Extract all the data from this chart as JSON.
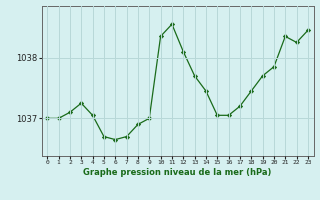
{
  "hours": [
    0,
    1,
    2,
    3,
    4,
    5,
    6,
    7,
    8,
    9,
    10,
    11,
    12,
    13,
    14,
    15,
    16,
    17,
    18,
    19,
    20,
    21,
    22,
    23
  ],
  "pressure": [
    1037.0,
    1037.0,
    1037.1,
    1037.25,
    1037.05,
    1036.7,
    1036.65,
    1036.7,
    1036.9,
    1037.0,
    1038.35,
    1038.55,
    1038.1,
    1037.7,
    1037.45,
    1037.05,
    1037.05,
    1037.2,
    1037.45,
    1037.7,
    1037.85,
    1038.35,
    1038.25,
    1038.45
  ],
  "line_color": "#1a6b1a",
  "marker": "D",
  "marker_size": 2.2,
  "bg_color": "#d6f0f0",
  "grid_color": "#b8d8d8",
  "ylabel_ticks": [
    1037,
    1038
  ],
  "xlabel_ticks": [
    0,
    1,
    2,
    3,
    4,
    5,
    6,
    7,
    8,
    9,
    10,
    11,
    12,
    13,
    14,
    15,
    16,
    17,
    18,
    19,
    20,
    21,
    22,
    23
  ],
  "xlabel_label": "Graphe pression niveau de la mer (hPa)",
  "ylim": [
    1036.38,
    1038.85
  ],
  "xlim": [
    -0.5,
    23.5
  ]
}
